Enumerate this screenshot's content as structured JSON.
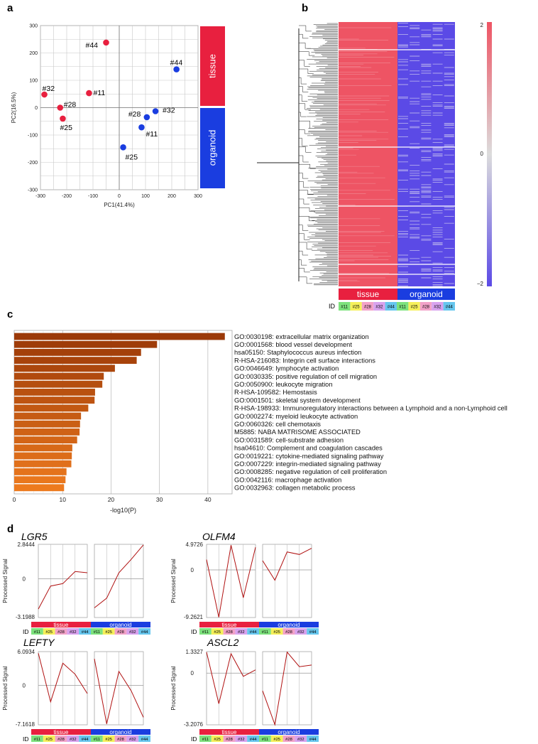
{
  "chart_data": [
    {
      "panel": "a",
      "type": "scatter",
      "xlabel": "PC1(41.4%)",
      "ylabel": "PC2(16.5%)",
      "xlim": [
        -300,
        300
      ],
      "ylim": [
        -300,
        300
      ],
      "xticks": [
        "-300",
        "-200",
        "-100",
        "0",
        "100",
        "200",
        "300"
      ],
      "yticks": [
        "300",
        "200",
        "100",
        "0",
        "-100",
        "-200",
        "-300"
      ],
      "groups": [
        "tissue",
        "organoid"
      ],
      "colors": {
        "tissue": "#e8203f",
        "organoid": "#1a3de0"
      },
      "series": [
        {
          "name": "tissue",
          "points": [
            {
              "label": "#44",
              "x": -50,
              "y": 238
            },
            {
              "label": "#32",
              "x": -285,
              "y": 48
            },
            {
              "label": "#11",
              "x": -115,
              "y": 53
            },
            {
              "label": "#28",
              "x": -225,
              "y": 0
            },
            {
              "label": "#25",
              "x": -215,
              "y": -40
            }
          ]
        },
        {
          "name": "organoid",
          "points": [
            {
              "label": "#44",
              "x": 218,
              "y": 140
            },
            {
              "label": "#32",
              "x": 138,
              "y": -13
            },
            {
              "label": "#28",
              "x": 105,
              "y": -35
            },
            {
              "label": "#11",
              "x": 85,
              "y": -72
            },
            {
              "label": "#25",
              "x": 15,
              "y": -145
            }
          ]
        }
      ]
    },
    {
      "panel": "b",
      "type": "heatmap",
      "scale_labels": [
        "2",
        "0",
        "−2"
      ],
      "groups": [
        "tissue",
        "organoid"
      ],
      "id_label": "ID",
      "ids": [
        "#11",
        "#25",
        "#28",
        "#32",
        "#44",
        "#11",
        "#25",
        "#28",
        "#32",
        "#44"
      ]
    },
    {
      "panel": "c",
      "type": "bar",
      "orientation": "horizontal",
      "xlabel": "-log10(P)",
      "xticks": [
        "0",
        "10",
        "20",
        "30",
        "40"
      ],
      "xlim": [
        0,
        45
      ],
      "categories": [
        "GO:0030198: extracellular matrix organization",
        "GO:0001568: blood vessel development",
        "hsa05150: Staphylococcus aureus infection",
        "R-HSA-216083: Integrin cell surface interactions",
        "GO:0046649: lymphocyte activation",
        "GO:0030335: positive regulation of cell migration",
        "GO:0050900: leukocyte migration",
        "R-HSA-109582: Hemostasis",
        "GO:0001501: skeletal system development",
        "R-HSA-198933: Immunoregulatory interactions between a Lymphoid and a non-Lymphoid cell",
        "GO:0002274: myeloid leukocyte activation",
        "GO:0060326: cell chemotaxis",
        "M5885: NABA MATRISOME ASSOCIATED",
        "GO:0031589: cell-substrate adhesion",
        "hsa04610: Complement and coagulation cascades",
        "GO:0019221: cytokine-mediated signaling pathway",
        "GO:0007229: integrin-mediated signaling pathway",
        "GO:0008285: negative regulation of cell proliferation",
        "GO:0042116: macrophage activation",
        "GO:0032963: collagen metabolic process"
      ],
      "values": [
        43.5,
        29.5,
        26.2,
        25.3,
        20.8,
        18.5,
        18.2,
        16.7,
        16.6,
        15.3,
        13.8,
        13.6,
        13.5,
        13.0,
        12.0,
        11.9,
        11.8,
        10.8,
        10.6,
        10.3
      ]
    },
    {
      "panel": "d",
      "type": "line",
      "ylabel": "Processed Signal",
      "id_label": "ID",
      "groups": [
        "tissue",
        "organoid"
      ],
      "ids": [
        "#11",
        "#25",
        "#28",
        "#32",
        "#44"
      ],
      "genes": [
        {
          "gene": "LGR5",
          "ymax": 2.8444,
          "ymin": -3.1988,
          "ymax_label": "2.8444",
          "ymin_label": "-3.1988",
          "tissue": [
            -2.5,
            -0.6,
            -0.4,
            0.6,
            0.5
          ],
          "organoid": [
            -2.4,
            -1.6,
            0.5,
            1.6,
            2.8
          ]
        },
        {
          "gene": "OLFM4",
          "ymax": 4.9726,
          "ymin": -9.2621,
          "ymax_label": "4.9726",
          "ymin_label": "-9.2621",
          "tissue": [
            2.0,
            -9.2,
            4.8,
            -5.4,
            4.4
          ],
          "organoid": [
            1.8,
            -2.0,
            3.5,
            3.0,
            4.2
          ]
        },
        {
          "gene": "LEFTY",
          "ymax": 6.0934,
          "ymin": -7.1618,
          "ymax_label": "6.0934",
          "ymin_label": "-7.1618",
          "tissue": [
            5.8,
            -3.0,
            4.0,
            2.0,
            -1.5
          ],
          "organoid": [
            4.8,
            -7.0,
            2.5,
            -1.0,
            -5.8
          ]
        },
        {
          "gene": "ASCL2",
          "ymax": 1.3327,
          "ymin": -3.2076,
          "ymax_label": "1.3327",
          "ymin_label": "-3.2076",
          "tissue": [
            1.3,
            -1.9,
            1.2,
            -0.2,
            0.2
          ],
          "organoid": [
            -1.1,
            -3.2,
            1.3,
            0.4,
            0.5
          ]
        }
      ]
    }
  ],
  "colors": {
    "tissue": "#e8203f",
    "organoid": "#1a3de0",
    "heat_high": "#ee5464",
    "heat_low": "#5b4ae6",
    "bar_dark": "#9b3908",
    "bar_light": "#ed7a1e",
    "line": "#b01010",
    "id_colors": [
      "#7de27d",
      "#f6f05a",
      "#f2a2c8",
      "#d8a2ee",
      "#66c6ee"
    ]
  }
}
